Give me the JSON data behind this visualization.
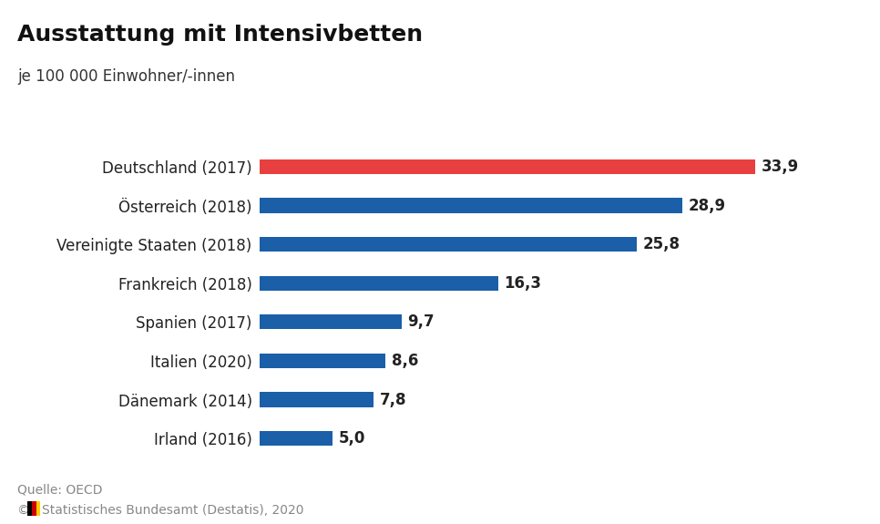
{
  "title": "Ausstattung mit Intensivbetten",
  "subtitle": "je 100 000 Einwohner/-innen",
  "categories": [
    "Deutschland (2017)",
    "Österreich (2018)",
    "Vereinigte Staaten (2018)",
    "Frankreich (2018)",
    "Spanien (2017)",
    "Italien (2020)",
    "Dänemark (2014)",
    "Irland (2016)"
  ],
  "values": [
    33.9,
    28.9,
    25.8,
    16.3,
    9.7,
    8.6,
    7.8,
    5.0
  ],
  "bar_colors": [
    "#e84040",
    "#1a5fa8",
    "#1a5fa8",
    "#1a5fa8",
    "#1a5fa8",
    "#1a5fa8",
    "#1a5fa8",
    "#1a5fa8"
  ],
  "label_texts": [
    "33,9",
    "28,9",
    "25,8",
    "16,3",
    "9,7",
    "8,6",
    "7,8",
    "5,0"
  ],
  "source_text": "Quelle: OECD",
  "copyright_text": "©   Statistisches Bundesamt (Destatis), 2020",
  "background_color": "#ffffff",
  "bar_height": 0.38,
  "xlim": [
    0,
    40
  ],
  "title_fontsize": 18,
  "subtitle_fontsize": 12,
  "label_fontsize": 12,
  "category_fontsize": 12,
  "source_fontsize": 10,
  "flag_colors": [
    "#000000",
    "#CC0000",
    "#FFCC00"
  ]
}
